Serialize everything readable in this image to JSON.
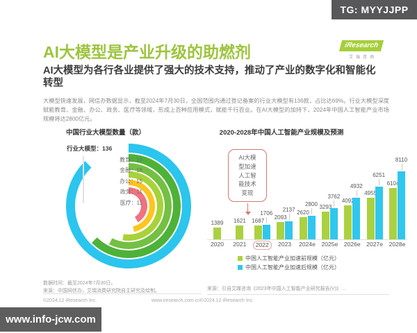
{
  "overlays": {
    "tg_badge": "TG: MYYJJPP",
    "watermark": "www.info-jcw.com"
  },
  "logo": {
    "brand": "iResearch",
    "brand_cn": "艾瑞咨询"
  },
  "header": {
    "title": "AI大模型是产业升级的助燃剂",
    "subtitle": "AI大模型为各行各业提供了强大的技术支持，推动了产业的数字化和智能化转型",
    "paragraph": "大模型快速发展，网信办数据显示，截至2024年7月30日，全国范围内通过登记备案的行业大模型有136款，占比达69%。行业大模型深度赋能教育、金融、办公、政务、医疗等领域，形成上百种应用模式，赋能千行百业。在AI大模型的加持下，2024年中国人工智能产业市场规模将达2800亿元。"
  },
  "chart_data": [
    {
      "type": "bar",
      "layout": "radial",
      "title": "中国行业大模型数量（款）",
      "total": {
        "label": "行业大模型",
        "value": 136
      },
      "categories": [
        "教育",
        "金融",
        "办公",
        "政务",
        "医疗"
      ],
      "values": [
        19,
        18,
        15,
        11,
        11
      ],
      "colors": [
        "#4eb238",
        "#73c043",
        "#a8d239",
        "#fdc51e",
        "#ef7380"
      ],
      "total_color": "#2bc5ee",
      "total_sweep_deg": 316,
      "sweeps_deg": [
        225,
        207,
        190,
        168,
        150
      ]
    },
    {
      "type": "bar",
      "title": "2020-2028年中国人工智能产业规模及预测",
      "categories": [
        "2020",
        "2021",
        "2022",
        "2023",
        "2024e",
        "2025e",
        "2026e",
        "2027e",
        "2028e"
      ],
      "series": [
        {
          "name": "中国人工智能产业加速前规模（亿元）",
          "color": "#abd140",
          "values": [
            1389,
            1621,
            1687,
            2093,
            2620,
            3293,
            4092,
            4955,
            6104
          ]
        },
        {
          "name": "中国人工智能产业加速后规模（亿元）",
          "color": "#30c7ee",
          "values": [
            null,
            null,
            1706,
            2137,
            2800,
            3762,
            4932,
            6251,
            8110
          ]
        }
      ],
      "ylim": [
        0,
        8110
      ],
      "highlighted_category": "2022",
      "annotation": "AI大模\n型加速\n人工智\n能技术\n变现",
      "legend_position": "bottom",
      "grid": false
    }
  ],
  "footnotes": {
    "left_line1": "数据时间：截至2024年7月30日。",
    "left_line2": "来源：中国网信办，艾瑞消费研究院自主研究及绘制。",
    "right_source": "来源：引自艾媒咨询《2023年中国人工智能产业研究报告(V)》…",
    "copyright_left": "©2024.12 iResearch Inc.",
    "copyright_right": "©2024.12 iResearch Inc.",
    "site": "www.iresearch.com.cn"
  }
}
